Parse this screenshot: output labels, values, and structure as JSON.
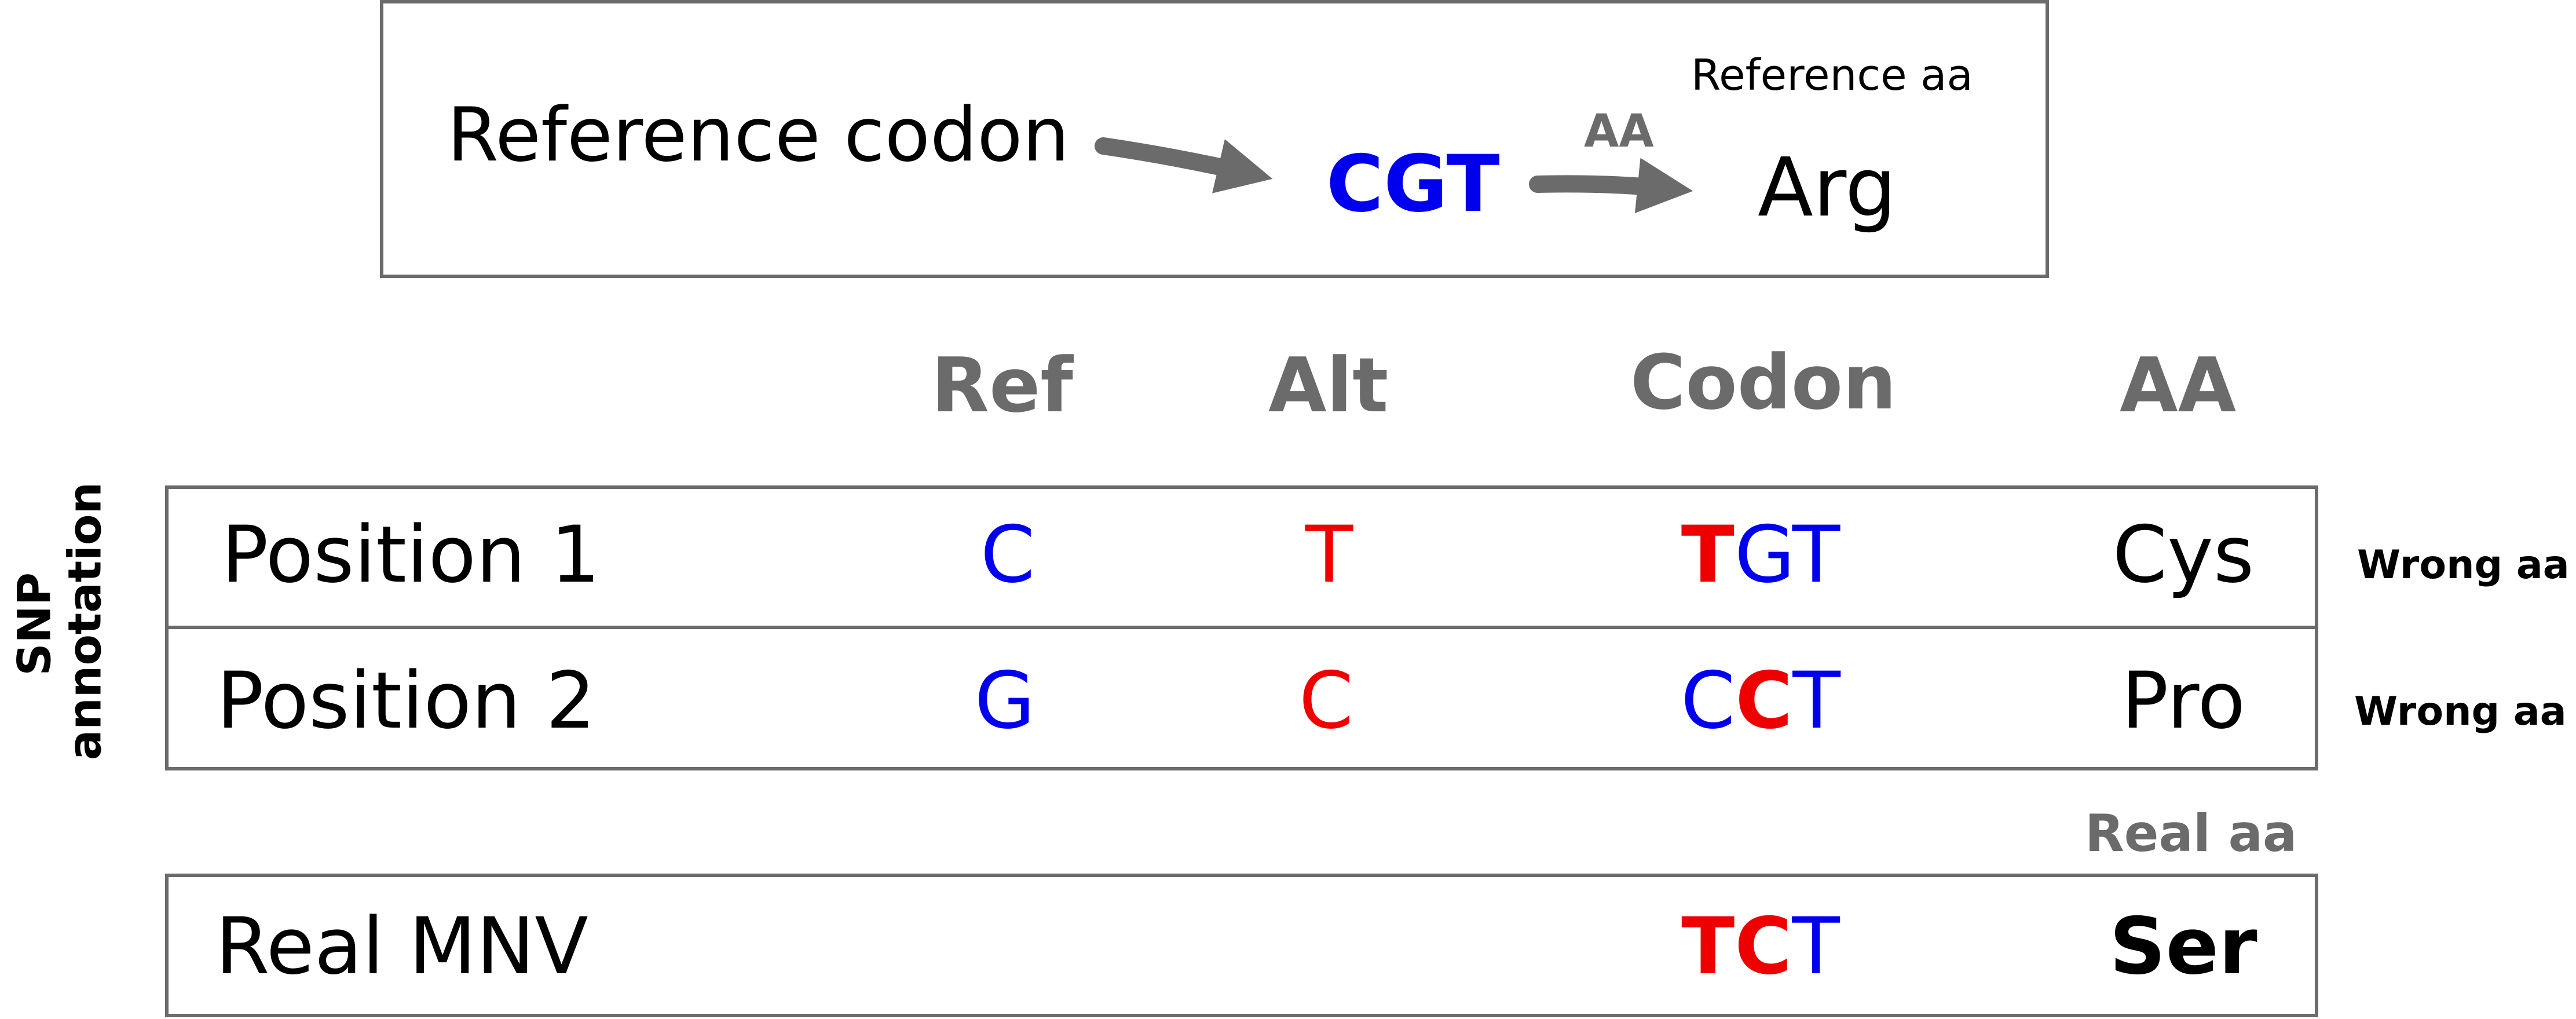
{
  "reference": {
    "label": "Reference codon",
    "codon": "CGT",
    "arrow_label": "AA",
    "aa_caption": "Reference aa",
    "aa": "Arg"
  },
  "headers": {
    "ref": "Ref",
    "alt": "Alt",
    "codon": "Codon",
    "aa": "AA"
  },
  "side_label": {
    "line1": "SNP",
    "line2": "annotation"
  },
  "rows": [
    {
      "label": "Position 1",
      "ref": "C",
      "alt": "T",
      "codon": [
        {
          "t": "T",
          "c": "red"
        },
        {
          "t": "G",
          "c": "blue"
        },
        {
          "t": "T",
          "c": "blue"
        }
      ],
      "aa": "Cys",
      "note": "Wrong aa"
    },
    {
      "label": "Position 2",
      "ref": "G",
      "alt": "C",
      "codon": [
        {
          "t": "C",
          "c": "blue"
        },
        {
          "t": "C",
          "c": "red"
        },
        {
          "t": "T",
          "c": "blue"
        }
      ],
      "aa": "Pro",
      "note": "Wrong aa"
    }
  ],
  "real_caption": "Real aa",
  "mnv": {
    "label": "Real MNV",
    "codon": [
      {
        "t": "T",
        "c": "red"
      },
      {
        "t": "C",
        "c": "red"
      },
      {
        "t": "T",
        "c": "blue"
      }
    ],
    "aa": "Ser"
  },
  "colors": {
    "ref_base": "#0000ee",
    "alt_base": "#ee0000",
    "frame": "#6b6b6b"
  }
}
